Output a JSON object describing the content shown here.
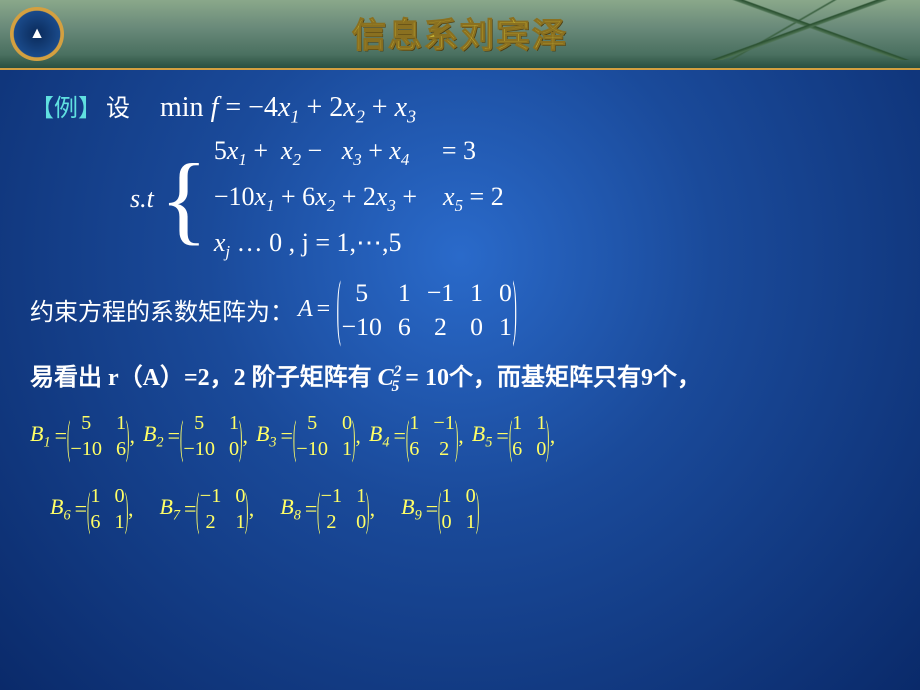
{
  "header": {
    "banner_title": "信息系刘宾泽",
    "background_colors": [
      "#8aa88a",
      "#2a5040"
    ],
    "accent_color": "#d4a040"
  },
  "content": {
    "background_gradient": [
      "#2a6aca",
      "#0a2a6a"
    ],
    "text_color": "#ffffff",
    "highlight_color": "#ffff66",
    "cyan_color": "#60e0e0",
    "example_label": "【例】",
    "set_text": "设",
    "objective": {
      "prefix": "min ",
      "func": "f",
      "eq": " = ",
      "expr": "−4x₁ + 2x₂ + x₃",
      "expr_parts": [
        {
          "coef": "−4",
          "var": "x",
          "sub": "1"
        },
        {
          "op": " + ",
          "coef": "2",
          "var": "x",
          "sub": "2"
        },
        {
          "op": " + ",
          "coef": "",
          "var": "x",
          "sub": "3"
        }
      ]
    },
    "st_label": "s.t",
    "constraints": {
      "row1": "5x₁ +  x₂ −  x₃ + x₄     = 3",
      "row2": "−10x₁ + 6x₂ + 2x₃ +    x₅ = 2",
      "row3_a": "x",
      "row3_sub": "j",
      "row3_b": " … 0 ,  j = 1,⋯,5"
    },
    "amatrix_label": "约束方程的系数矩阵为：",
    "amatrix_sym": "A",
    "amatrix": {
      "cols": 5,
      "cells": [
        "5",
        "1",
        "−1",
        "1",
        "0",
        "−10",
        "6",
        "2",
        "0",
        "1"
      ]
    },
    "rank_text_a": "易看出 r（A）=2，2 阶子矩阵有 ",
    "comb_C": "C",
    "comb_sup": "2",
    "comb_sub": "5",
    "rank_eq": " = 10",
    "rank_text_b": "个，而基矩阵只有9个，",
    "bases_row1": [
      {
        "name": "B",
        "sub": "1",
        "m": [
          "5",
          "1",
          "−10",
          "6"
        ]
      },
      {
        "name": "B",
        "sub": "2",
        "m": [
          "5",
          "1",
          "−10",
          "0"
        ]
      },
      {
        "name": "B",
        "sub": "3",
        "m": [
          "5",
          "0",
          "−10",
          "1"
        ]
      },
      {
        "name": "B",
        "sub": "4",
        "m": [
          "1",
          "−1",
          "6",
          "2"
        ]
      },
      {
        "name": "B",
        "sub": "5",
        "m": [
          "1",
          "1",
          "6",
          "0"
        ]
      }
    ],
    "bases_row2": [
      {
        "name": "B",
        "sub": "6",
        "m": [
          "1",
          "0",
          "6",
          "1"
        ]
      },
      {
        "name": "B",
        "sub": "7",
        "m": [
          "−1",
          "0",
          "2",
          "1"
        ]
      },
      {
        "name": "B",
        "sub": "8",
        "m": [
          "−1",
          "1",
          "2",
          "0"
        ]
      },
      {
        "name": "B",
        "sub": "9",
        "m": [
          "1",
          "0",
          "0",
          "1"
        ]
      }
    ]
  }
}
